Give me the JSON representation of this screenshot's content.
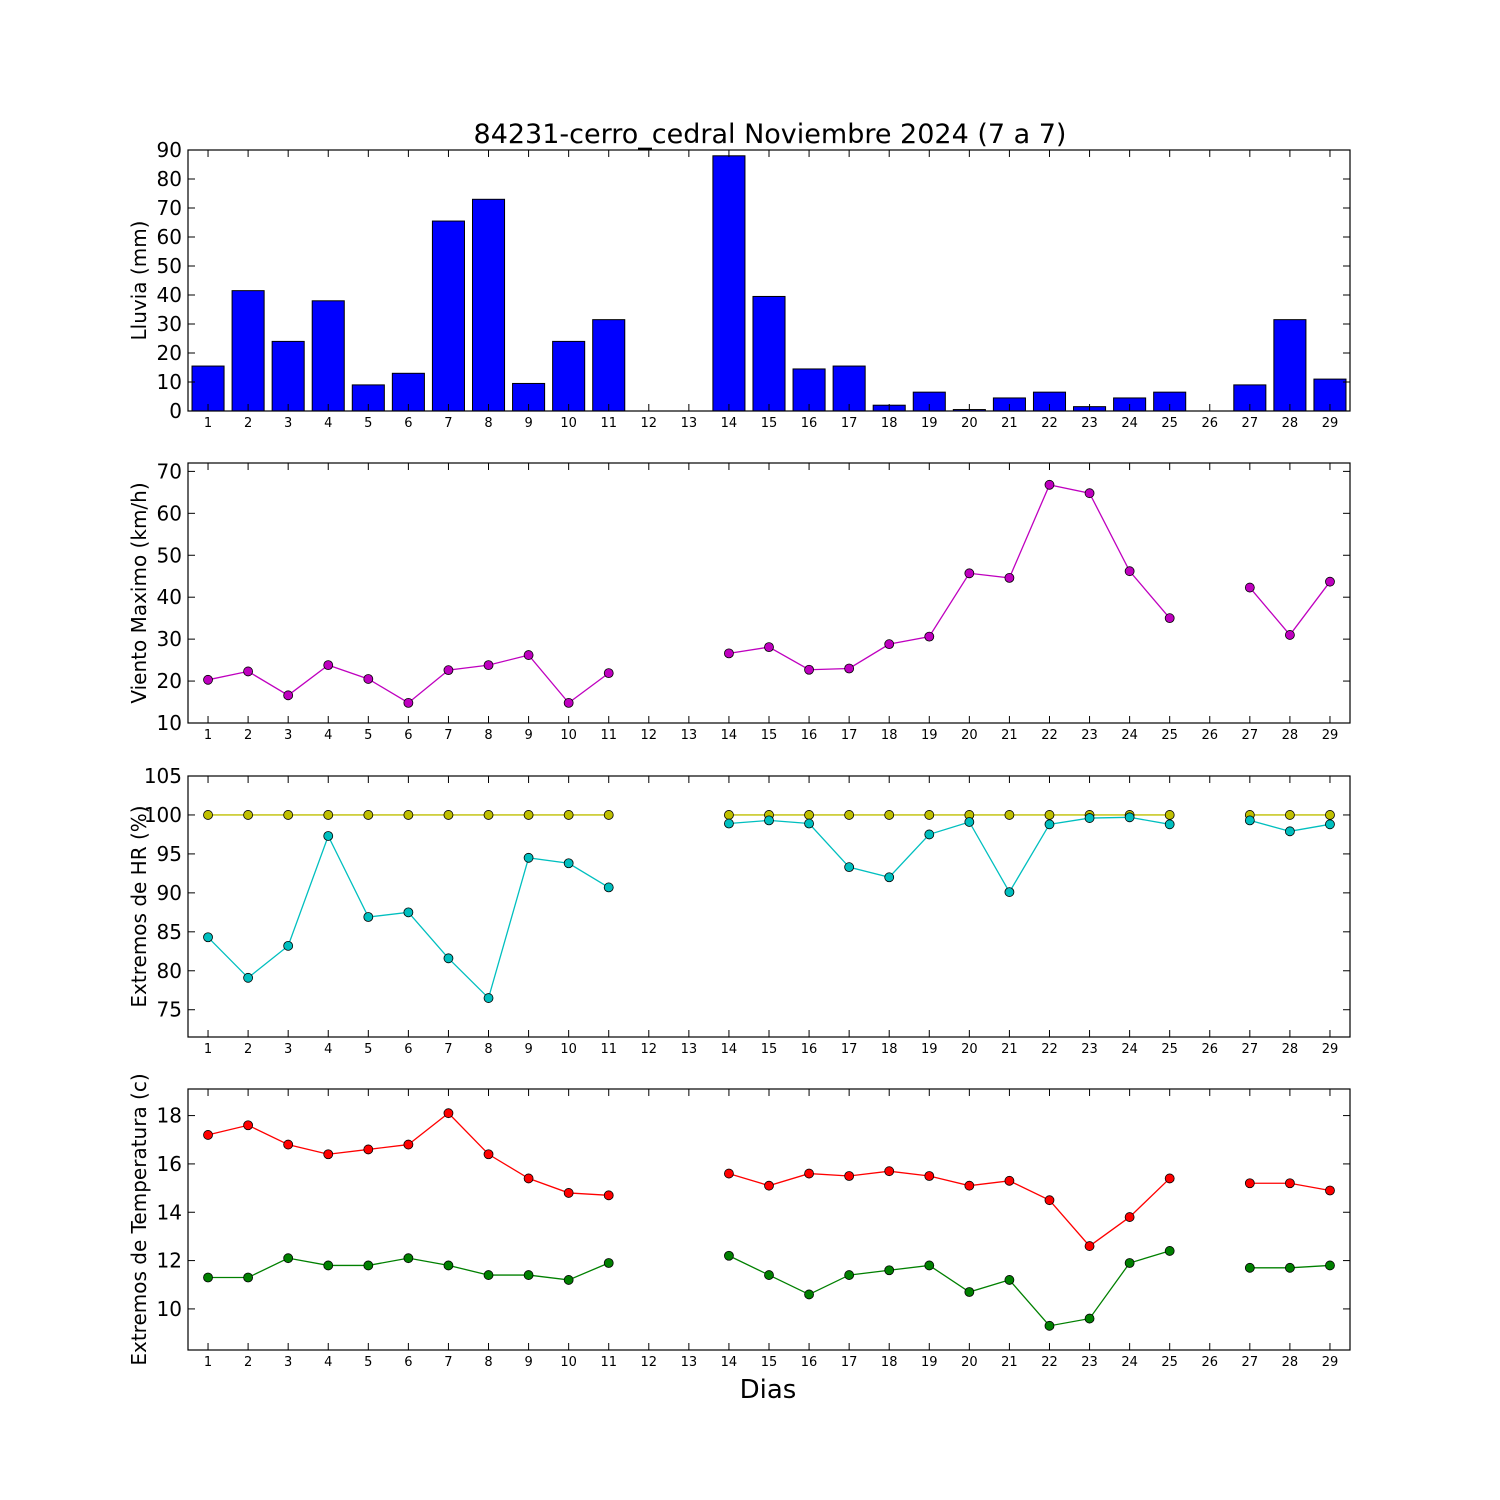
{
  "figure": {
    "title": "84231-cerro_cedral Noviembre 2024  (7 a 7)",
    "xlabel": "Dias"
  },
  "chart_data": [
    {
      "type": "bar",
      "ylabel": "Lluvia (mm)",
      "ylim": [
        0,
        90
      ],
      "yticks": [
        0,
        10,
        20,
        30,
        40,
        50,
        60,
        70,
        80,
        90
      ],
      "x": [
        1,
        2,
        3,
        4,
        5,
        6,
        7,
        8,
        9,
        10,
        11,
        12,
        13,
        14,
        15,
        16,
        17,
        18,
        19,
        20,
        21,
        22,
        23,
        24,
        25,
        26,
        27,
        28,
        29
      ],
      "series": [
        {
          "color": "#0000ff",
          "values": [
            15.5,
            41.5,
            24,
            38,
            9,
            13,
            65.5,
            73,
            9.5,
            24,
            31.5,
            0,
            0,
            88,
            39.5,
            14.5,
            15.5,
            2,
            6.5,
            0.5,
            4.5,
            6.5,
            1.5,
            4.5,
            6.5,
            0,
            9,
            31.5,
            11
          ]
        }
      ]
    },
    {
      "type": "line",
      "ylabel": "Viento Maximo (km/h)",
      "ylim": [
        10,
        72
      ],
      "yticks": [
        10,
        20,
        30,
        40,
        50,
        60,
        70
      ],
      "x": [
        1,
        2,
        3,
        4,
        5,
        6,
        7,
        8,
        9,
        10,
        11,
        12,
        13,
        14,
        15,
        16,
        17,
        18,
        19,
        20,
        21,
        22,
        23,
        24,
        25,
        26,
        27,
        28,
        29
      ],
      "series": [
        {
          "color": "#bf00bf",
          "values": [
            20.3,
            22.3,
            16.6,
            23.8,
            20.5,
            14.8,
            22.6,
            23.8,
            26.2,
            14.8,
            21.9,
            null,
            null,
            26.6,
            28.1,
            22.7,
            23,
            28.8,
            30.6,
            45.7,
            44.6,
            66.8,
            64.8,
            46.2,
            35,
            null,
            42.3,
            31,
            43.7
          ]
        }
      ]
    },
    {
      "type": "line",
      "ylabel": "Extremos de HR (%)",
      "ylim": [
        71.5,
        105
      ],
      "yticks": [
        75,
        80,
        85,
        90,
        95,
        100,
        105
      ],
      "x": [
        1,
        2,
        3,
        4,
        5,
        6,
        7,
        8,
        9,
        10,
        11,
        12,
        13,
        14,
        15,
        16,
        17,
        18,
        19,
        20,
        21,
        22,
        23,
        24,
        25,
        26,
        27,
        28,
        29
      ],
      "series": [
        {
          "color": "#bfbf00",
          "values": [
            100,
            100,
            100,
            100,
            100,
            100,
            100,
            100,
            100,
            100,
            100,
            null,
            null,
            100,
            100,
            100,
            100,
            100,
            100,
            100,
            100,
            100,
            100,
            100,
            100,
            null,
            100,
            100,
            100
          ]
        },
        {
          "color": "#00bfbf",
          "values": [
            84.3,
            79.1,
            83.2,
            97.3,
            86.9,
            87.5,
            81.6,
            76.5,
            94.5,
            93.8,
            90.7,
            null,
            null,
            98.9,
            99.3,
            98.9,
            93.3,
            92,
            97.5,
            99.1,
            90.1,
            98.8,
            99.6,
            99.7,
            98.8,
            null,
            99.3,
            97.9,
            98.8
          ]
        }
      ]
    },
    {
      "type": "line",
      "ylabel": "Extremos de Temperatura (c)",
      "ylim": [
        8.3,
        19.1
      ],
      "yticks": [
        10,
        12,
        14,
        16,
        18
      ],
      "x": [
        1,
        2,
        3,
        4,
        5,
        6,
        7,
        8,
        9,
        10,
        11,
        12,
        13,
        14,
        15,
        16,
        17,
        18,
        19,
        20,
        21,
        22,
        23,
        24,
        25,
        26,
        27,
        28,
        29
      ],
      "series": [
        {
          "color": "#ff0000",
          "values": [
            17.2,
            17.6,
            16.8,
            16.4,
            16.6,
            16.8,
            18.1,
            16.4,
            15.4,
            14.8,
            14.7,
            null,
            null,
            15.6,
            15.1,
            15.6,
            15.5,
            15.7,
            15.5,
            15.1,
            15.3,
            14.5,
            12.6,
            13.8,
            15.4,
            null,
            15.2,
            15.2,
            14.9
          ]
        },
        {
          "color": "#008000",
          "values": [
            11.3,
            11.3,
            12.1,
            11.8,
            11.8,
            12.1,
            11.8,
            11.4,
            11.4,
            11.2,
            11.9,
            null,
            null,
            12.2,
            11.4,
            10.6,
            11.4,
            11.6,
            11.8,
            10.7,
            11.2,
            9.3,
            9.6,
            11.9,
            12.4,
            null,
            11.7,
            11.7,
            11.8
          ]
        }
      ]
    }
  ]
}
